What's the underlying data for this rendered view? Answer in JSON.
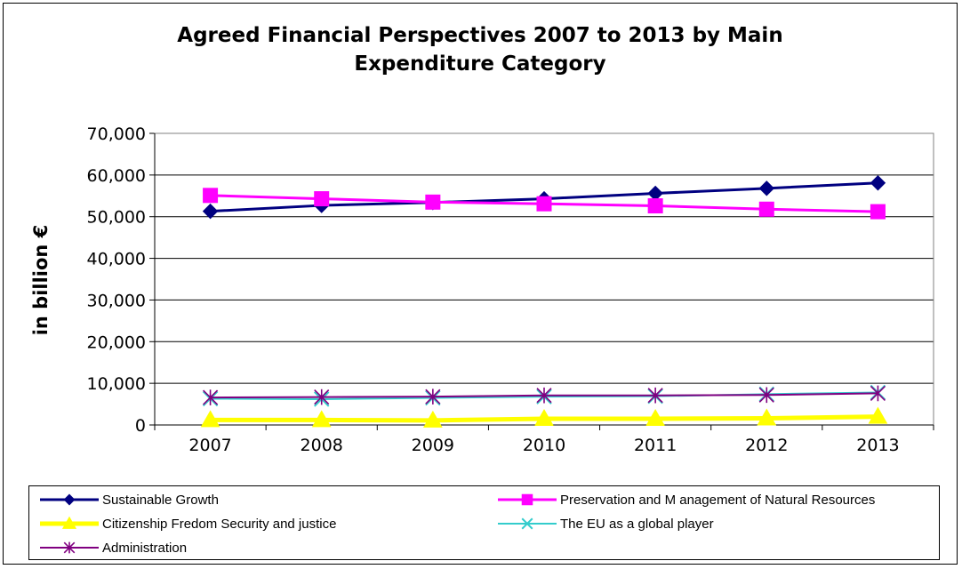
{
  "chart_data": {
    "type": "line",
    "title": "Agreed Financial Perspectives 2007 to 2013 by Main Expenditure Category",
    "ylabel": "in billion €",
    "xlabel": "",
    "x": [
      "2007",
      "2008",
      "2009",
      "2010",
      "2011",
      "2012",
      "2013"
    ],
    "ylim": [
      0,
      70000
    ],
    "yticks": [
      0,
      10000,
      20000,
      30000,
      40000,
      50000,
      60000,
      70000
    ],
    "ytick_labels": [
      "0",
      "10,000",
      "20,000",
      "30,000",
      "40,000",
      "50,000",
      "60,000",
      "70,000"
    ],
    "grid": true,
    "legend_position": "bottom",
    "series": [
      {
        "name": "Sustainable Growth",
        "color": "#000080",
        "marker": "diamond",
        "values": [
          51300,
          52700,
          53400,
          54300,
          55600,
          56800,
          58100
        ]
      },
      {
        "name": "Preservation and M anagement of Natural Resources",
        "color": "#ff00ff",
        "marker": "square",
        "values": [
          55100,
          54300,
          53500,
          53100,
          52600,
          51800,
          51200
        ]
      },
      {
        "name": "Citizenship Fredom Security and justice",
        "color": "#ffff00",
        "marker": "triangle",
        "values": [
          1200,
          1200,
          1100,
          1500,
          1500,
          1600,
          2000
        ]
      },
      {
        "name": "The EU as a global player",
        "color": "#33cccc",
        "marker": "x",
        "values": [
          6300,
          6200,
          6500,
          6800,
          6900,
          7400,
          7800
        ]
      },
      {
        "name": "Administration",
        "color": "#800080",
        "marker": "star",
        "values": [
          6600,
          6700,
          6800,
          7100,
          7100,
          7200,
          7600
        ]
      }
    ]
  }
}
